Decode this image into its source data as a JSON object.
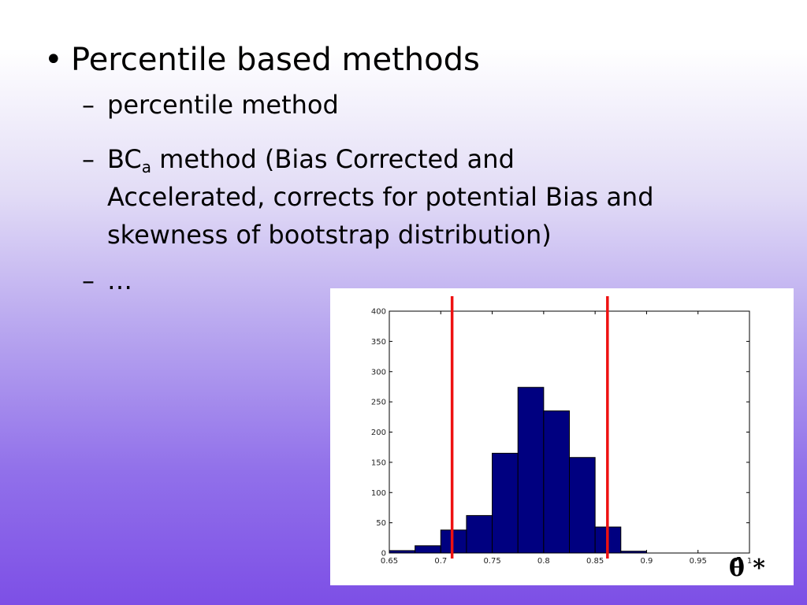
{
  "slide": {
    "bullet_symbol": "•",
    "heading": "Percentile based methods",
    "dash": "–",
    "items": [
      {
        "text": "percentile method"
      },
      {
        "pre": "BC",
        "sub": "a",
        "post": " method (Bias Corrected and",
        "line2": "Accelerated, corrects for potential Bias and",
        "line3": "skewness of bootstrap distribution)"
      },
      {
        "text": "…"
      }
    ]
  },
  "chart_data": {
    "type": "bar",
    "title": "",
    "xlabel": "θ̂ *",
    "ylabel": "",
    "bin_edges": [
      0.65,
      0.675,
      0.7,
      0.725,
      0.75,
      0.775,
      0.8,
      0.825,
      0.85,
      0.875,
      0.9
    ],
    "values": [
      4,
      12,
      38,
      62,
      165,
      274,
      235,
      158,
      43,
      3
    ],
    "xlim": [
      0.65,
      1
    ],
    "ylim": [
      0,
      400
    ],
    "xticks": [
      "0.65",
      "0.7",
      "0.75",
      "0.8",
      "0.85",
      "0.9",
      "0.95",
      "1"
    ],
    "yticks": [
      "0",
      "50",
      "100",
      "150",
      "200",
      "250",
      "300",
      "350",
      "400"
    ],
    "bar_color": "#000080",
    "vlines": [
      {
        "x": 0.711,
        "color": "#ee1111"
      },
      {
        "x": 0.862,
        "color": "#ee1111"
      }
    ]
  }
}
